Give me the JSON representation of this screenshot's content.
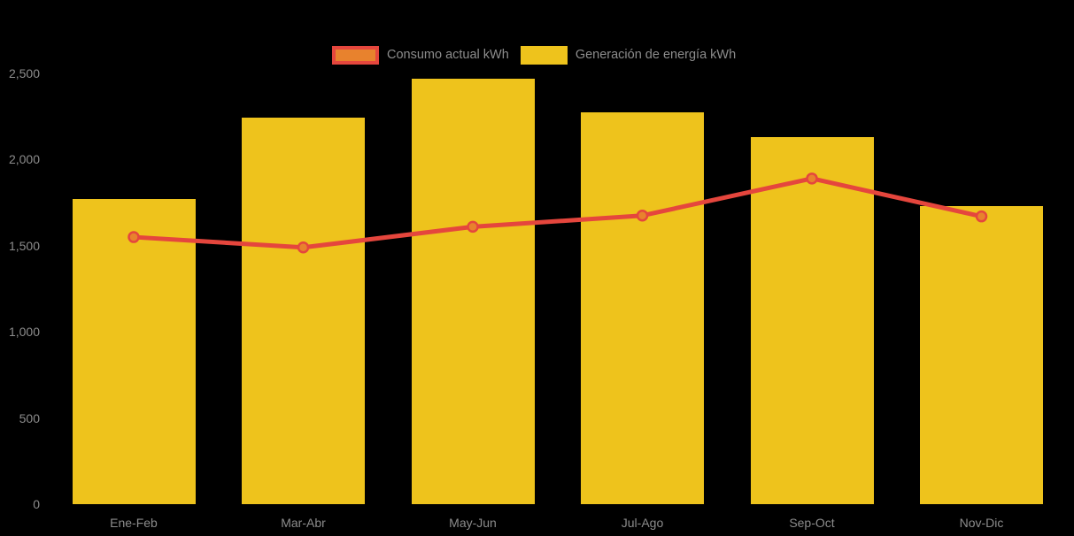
{
  "chart_data": {
    "type": "bar",
    "subtype": "bar-line-combo",
    "title": "",
    "xlabel": "",
    "ylabel": "",
    "categories": [
      "Ene-Feb",
      "Mar-Abr",
      "May-Jun",
      "Jul-Ago",
      "Sep-Oct",
      "Nov-Dic"
    ],
    "series": [
      {
        "name": "Consumo actual kWh",
        "type": "line",
        "color": "#E5463D",
        "marker_fill": "#E8822D",
        "values": [
          1550,
          1490,
          1610,
          1675,
          1890,
          1670
        ]
      },
      {
        "name": "Generación de energía kWh",
        "type": "bar",
        "color": "#EEC31C",
        "values": [
          1770,
          2245,
          2470,
          2275,
          2130,
          1730
        ]
      }
    ],
    "ylim": [
      0,
      2500
    ],
    "y_ticks": [
      "0",
      "500",
      "1,000",
      "1,500",
      "2,000",
      "2,500"
    ],
    "grid": false,
    "legend_position": "top",
    "background_color": "#000000",
    "axis_label_color": "#8C8C8C"
  }
}
